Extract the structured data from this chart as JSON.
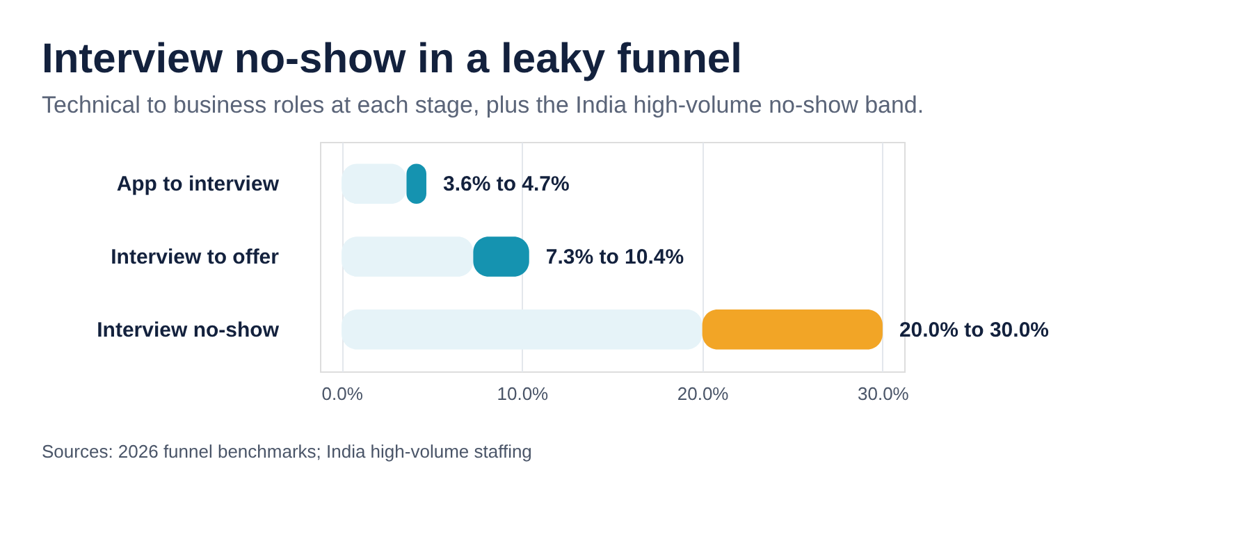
{
  "chart_data": {
    "type": "bar",
    "orientation": "horizontal",
    "stacked": true,
    "title": "Interview no-show in a leaky funnel",
    "subtitle": "Technical to business roles at each stage, plus the India high-volume no-show band.",
    "categories": [
      "App to interview",
      "Interview to offer",
      "Interview no-show"
    ],
    "series": [
      {
        "color": "#e6f3f8",
        "values": [
          3.6,
          7.3,
          20.0
        ]
      },
      {
        "colors": [
          "#1593b0",
          "#1593b0",
          "#f2a526"
        ],
        "values": [
          1.1,
          3.1,
          10.0
        ]
      }
    ],
    "xlim": [
      -1.2,
      31.2
    ],
    "xticks": [
      {
        "value": 0,
        "label": "0.0%"
      },
      {
        "value": 10,
        "label": "10.0%"
      },
      {
        "value": 20,
        "label": "20.0%"
      },
      {
        "value": 30,
        "label": "30.0%"
      }
    ],
    "grid": "x",
    "annotations": [
      {
        "text": "3.6% to 4.7%",
        "x": 4.7,
        "y": "App to interview"
      },
      {
        "text": "7.3% to 10.4%",
        "x": 10.4,
        "y": "Interview to offer"
      },
      {
        "text": "20.0% to 30.0%",
        "x": 30.0,
        "y": "Interview no-show"
      },
      "Sources: 2026 funnel benchmarks; India high-volume staffing"
    ]
  }
}
